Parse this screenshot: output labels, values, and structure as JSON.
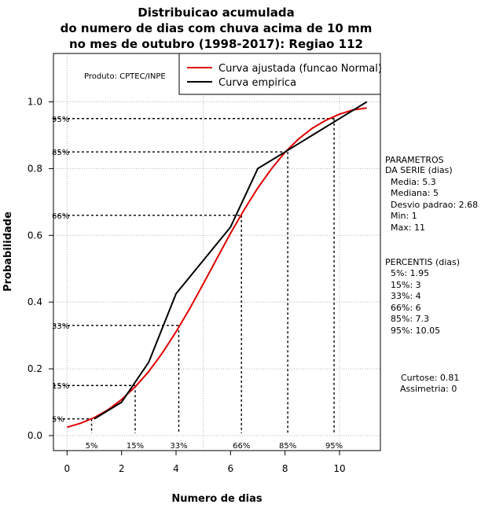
{
  "chart_data": {
    "type": "line",
    "title": [
      "Distribuicao acumulada",
      "do numero de dias com chuva acima de 10 mm",
      "no mes de outubro (1998-2017): Regiao 112"
    ],
    "xlabel": "Numero de dias",
    "ylabel": "Probabilidade",
    "xlim": [
      -0.5,
      11.5
    ],
    "ylim": [
      -0.045,
      1.145
    ],
    "x_ticks": [
      0,
      2,
      4,
      6,
      8,
      10
    ],
    "y_ticks": [
      0.0,
      0.2,
      0.4,
      0.6,
      0.8,
      1.0
    ],
    "x_tick_labels": [
      "0",
      "2",
      "4",
      "6",
      "8",
      "10"
    ],
    "y_tick_labels": [
      "0.0",
      "0.2",
      "0.4",
      "0.6",
      "0.8",
      "1.0"
    ],
    "grid": true,
    "producer": "Produto: CPTEC/INPE",
    "legend": [
      {
        "label": "Curva ajustada (funcao Normal)",
        "color": "#e00000"
      },
      {
        "label": "Curva empirica",
        "color": "#000000"
      }
    ],
    "series": [
      {
        "name": "Curva ajustada (funcao Normal)",
        "color": "#e00000",
        "x": [
          0,
          0.5,
          1,
          1.5,
          2,
          2.5,
          3,
          3.5,
          4,
          4.5,
          5,
          5.5,
          6,
          6.5,
          7,
          7.5,
          8,
          8.5,
          9,
          9.5,
          10,
          10.5,
          11
        ],
        "y": [
          0.025,
          0.037,
          0.054,
          0.077,
          0.108,
          0.146,
          0.192,
          0.248,
          0.311,
          0.38,
          0.455,
          0.531,
          0.606,
          0.677,
          0.742,
          0.799,
          0.849,
          0.889,
          0.921,
          0.945,
          0.963,
          0.976,
          0.982
        ]
      },
      {
        "name": "Curva empirica",
        "color": "#000000",
        "x": [
          1,
          2,
          3,
          4,
          6,
          7,
          8,
          9,
          10,
          11
        ],
        "y": [
          0.05,
          0.1,
          0.22,
          0.425,
          0.625,
          0.8,
          0.85,
          0.9,
          0.95,
          1.0
        ]
      }
    ],
    "percentile_lines": [
      {
        "label": "5%",
        "p": 0.05,
        "x": 0.9
      },
      {
        "label": "15%",
        "p": 0.15,
        "x": 2.5
      },
      {
        "label": "33%",
        "p": 0.33,
        "x": 4.1
      },
      {
        "label": "66%",
        "p": 0.66,
        "x": 6.4
      },
      {
        "label": "85%",
        "p": 0.85,
        "x": 8.1
      },
      {
        "label": "95%",
        "p": 0.95,
        "x": 9.8
      }
    ]
  },
  "side_panel": {
    "params_title": [
      "PARAMETROS",
      "DA SERIE (dias)"
    ],
    "params": [
      "Media: 5.3",
      "Mediana: 5",
      "Desvio padrao: 2.68",
      "Min: 1",
      "Max: 11"
    ],
    "percentis_title": "PERCENTIS (dias)",
    "percentis": [
      "5%: 1.95",
      "15%: 3",
      "33%: 4",
      "66%: 6",
      "85%: 7.3",
      "95%: 10.05"
    ],
    "curtose": "Curtose: 0.81",
    "assimetria": "Assimetria: 0"
  }
}
